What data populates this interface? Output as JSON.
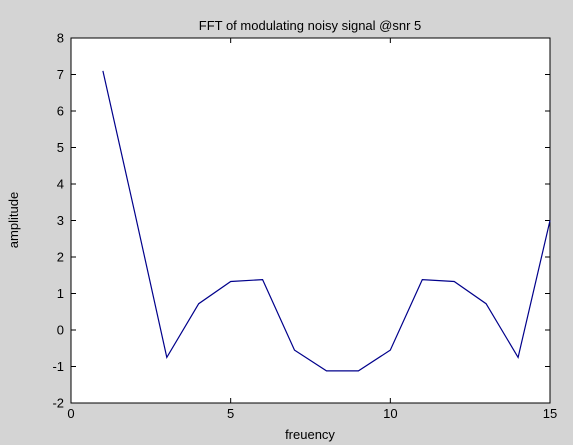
{
  "chart_data": {
    "type": "line",
    "title": "FFT of modulating  noisy signal @snr 5",
    "xlabel": "freuency",
    "ylabel": "amplitude",
    "xlim": [
      0,
      15
    ],
    "ylim": [
      -2,
      8
    ],
    "xticks": [
      0,
      5,
      10,
      15
    ],
    "yticks": [
      -2,
      -1,
      0,
      1,
      2,
      3,
      4,
      5,
      6,
      7,
      8
    ],
    "grid": false,
    "series": [
      {
        "color": "#00008b",
        "x": [
          1,
          2,
          3,
          4,
          5,
          6,
          7,
          8,
          9,
          10,
          11,
          12,
          13,
          14,
          15
        ],
        "y": [
          7.1,
          3.2,
          -0.75,
          0.72,
          1.33,
          1.38,
          -0.55,
          -1.12,
          -1.12,
          -0.55,
          1.38,
          1.33,
          0.72,
          -0.75,
          3.0
        ]
      }
    ]
  }
}
